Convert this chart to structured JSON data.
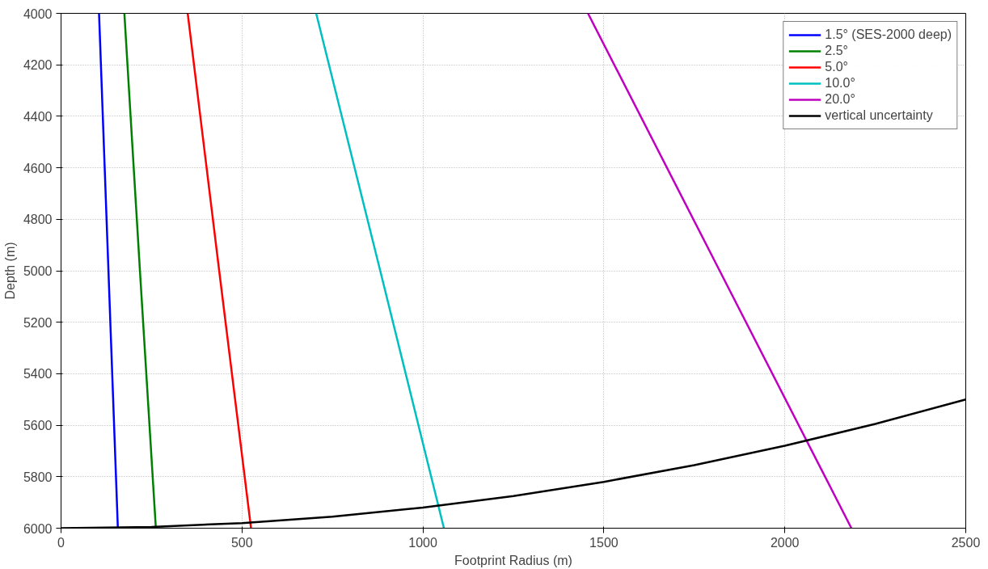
{
  "chart_data": {
    "type": "line",
    "xlabel": "Footprint Radius (m)",
    "ylabel": "Depth (m)",
    "xlim": [
      0,
      2500
    ],
    "xticks": [
      0,
      500,
      1000,
      1500,
      2000,
      2500
    ],
    "ylim": [
      6000,
      4000
    ],
    "yticks": [
      4000,
      4200,
      4400,
      4600,
      4800,
      5000,
      5200,
      5400,
      5600,
      5800,
      6000
    ],
    "grid": true,
    "legend": "top right",
    "line_style": "solid",
    "marker": "none",
    "series": [
      {
        "name": "1.5° (SES-2000 deep)",
        "color": "#0000ff",
        "x": [
          105,
          131,
          157
        ],
        "values": [
          4000,
          5000,
          6000
        ]
      },
      {
        "name": "2.5°",
        "color": "#008000",
        "x": [
          175,
          218,
          262
        ],
        "values": [
          4000,
          5000,
          6000
        ]
      },
      {
        "name": "5.0°",
        "color": "#ff0000",
        "x": [
          350,
          437,
          525
        ],
        "values": [
          4000,
          5000,
          6000
        ]
      },
      {
        "name": "10.0°",
        "color": "#00bfbf",
        "x": [
          705,
          882,
          1058
        ],
        "values": [
          4000,
          5000,
          6000
        ]
      },
      {
        "name": "20.0°",
        "color": "#bf00bf",
        "x": [
          1456,
          1820,
          2184
        ],
        "values": [
          4000,
          5000,
          6000
        ]
      },
      {
        "name": "vertical uncertainty",
        "color": "#000000",
        "x": [
          0,
          250,
          500,
          750,
          1000,
          1250,
          1500,
          1750,
          2000,
          2250,
          2500
        ],
        "values": [
          6000,
          5995,
          5980,
          5955,
          5920,
          5875,
          5820,
          5755,
          5680,
          5595,
          5500
        ]
      }
    ]
  }
}
